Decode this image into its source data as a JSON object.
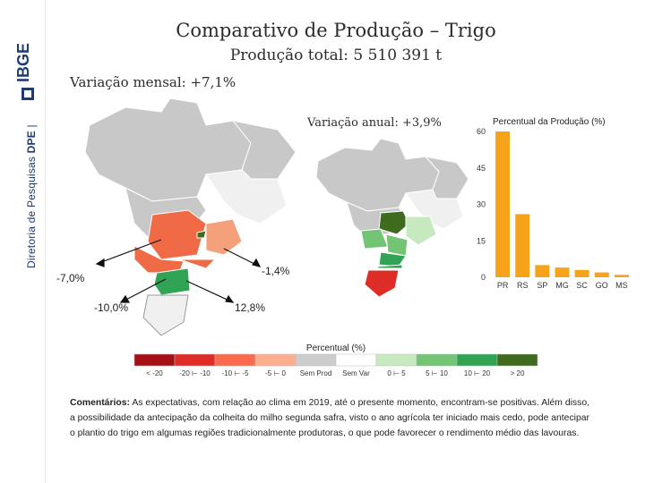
{
  "sidebar": {
    "prefix": "Diretoria de Pesquisas",
    "dept": "DPE",
    "logo": "IBGE"
  },
  "header": {
    "title": "Comparativo de Produção – Trigo",
    "subtitle": "Produção total: 5 510 391 t"
  },
  "maps": {
    "monthly_label": "Variação mensal: +7,1%",
    "annual_label": "Variação anual: +3,9%",
    "callouts": [
      "-7,0%",
      "-1,4%",
      "-10,0%",
      "12,8%"
    ]
  },
  "chart_data": {
    "type": "bar",
    "title": "Percentual da Produção (%)",
    "categories": [
      "PR",
      "RS",
      "SP",
      "MG",
      "SC",
      "GO",
      "MS"
    ],
    "values": [
      60,
      26,
      5,
      4,
      3,
      2,
      1
    ],
    "ylim": [
      0,
      60
    ],
    "yticks": [
      0,
      15,
      30,
      45,
      60
    ],
    "color": "#f7a21b"
  },
  "legend": {
    "title": "Percentual (%)",
    "items": [
      {
        "label": "< -20",
        "color": "#a50f15"
      },
      {
        "label": "-20 ⊢ -10",
        "color": "#de2d26"
      },
      {
        "label": "-10 ⊢ -5",
        "color": "#fb6a4a"
      },
      {
        "label": "-5 ⊢ 0",
        "color": "#fcae91"
      },
      {
        "label": "Sem Prod",
        "color": "#cccccc"
      },
      {
        "label": "Sem Var",
        "color": "#ffffff"
      },
      {
        "label": "0 ⊢ 5",
        "color": "#c7e9c0"
      },
      {
        "label": "5 ⊢ 10",
        "color": "#74c476"
      },
      {
        "label": "10 ⊢ 20",
        "color": "#31a354"
      },
      {
        "label": "> 20",
        "color": "#3f6b1e"
      }
    ]
  },
  "comment": {
    "label": "Comentários:",
    "text": "As expectativas, com relação ao clima em 2019, até o presente momento, encontram-se positivas. Além disso, a possibilidade da antecipação da colheita do milho segunda safra, visto o ano agrícola ter iniciado mais cedo, pode antecipar o plantio do trigo em algumas regiões tradicionalmente produtoras, o que pode favorecer o rendimento médio das lavouras."
  }
}
